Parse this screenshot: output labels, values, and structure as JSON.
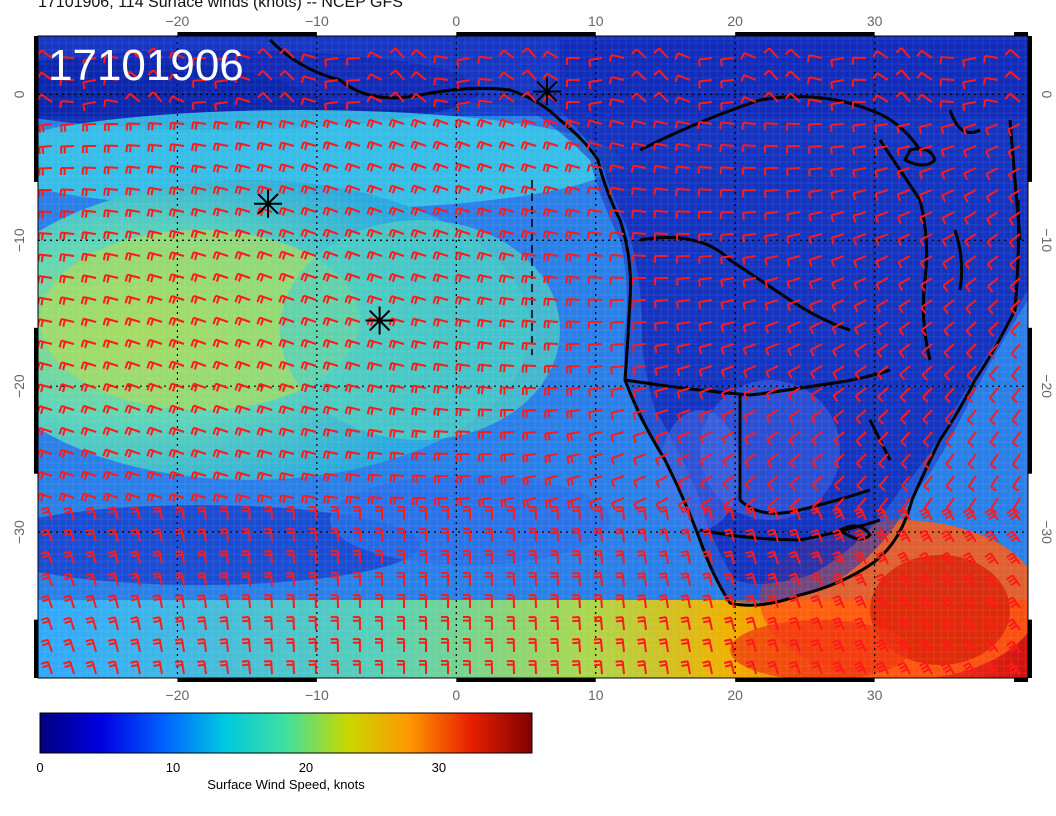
{
  "header": {
    "title": "17101906, 114 Surface winds (knots) -- NCEP GFS"
  },
  "map": {
    "stamp": "17101906",
    "lon_range": [
      -30,
      41
    ],
    "lat_range": [
      -40,
      4
    ],
    "lon_ticks": [
      {
        "v": -20,
        "label": "−20"
      },
      {
        "v": -10,
        "label": "−10"
      },
      {
        "v": 0,
        "label": "0"
      },
      {
        "v": 10,
        "label": "10"
      },
      {
        "v": 20,
        "label": "20"
      },
      {
        "v": 30,
        "label": "30"
      }
    ],
    "lat_ticks": [
      {
        "v": 0,
        "label": "0"
      },
      {
        "v": -10,
        "label": "−10"
      },
      {
        "v": -20,
        "label": "−20"
      },
      {
        "v": -30,
        "label": "−30"
      }
    ],
    "markers": [
      {
        "name": "star-marker-1",
        "lon": 6.5,
        "lat": 0.2
      },
      {
        "name": "star-marker-2",
        "lon": -13.5,
        "lat": -7.5
      },
      {
        "name": "star-marker-3",
        "lon": -5.5,
        "lat": -15.5
      }
    ],
    "colors": {
      "barb": "#ff1a1a",
      "coast": "#000000"
    }
  },
  "colorbar": {
    "label": "Surface Wind Speed, knots",
    "min": 0,
    "max": 37,
    "ticks": [
      {
        "v": 0,
        "label": "0"
      },
      {
        "v": 10,
        "label": "10"
      },
      {
        "v": 20,
        "label": "20"
      },
      {
        "v": 30,
        "label": "30"
      }
    ],
    "stops": [
      "#000080",
      "#0000e0",
      "#0060ff",
      "#00c8e0",
      "#40e0a0",
      "#c8d800",
      "#ff9800",
      "#e82000",
      "#800000"
    ]
  }
}
